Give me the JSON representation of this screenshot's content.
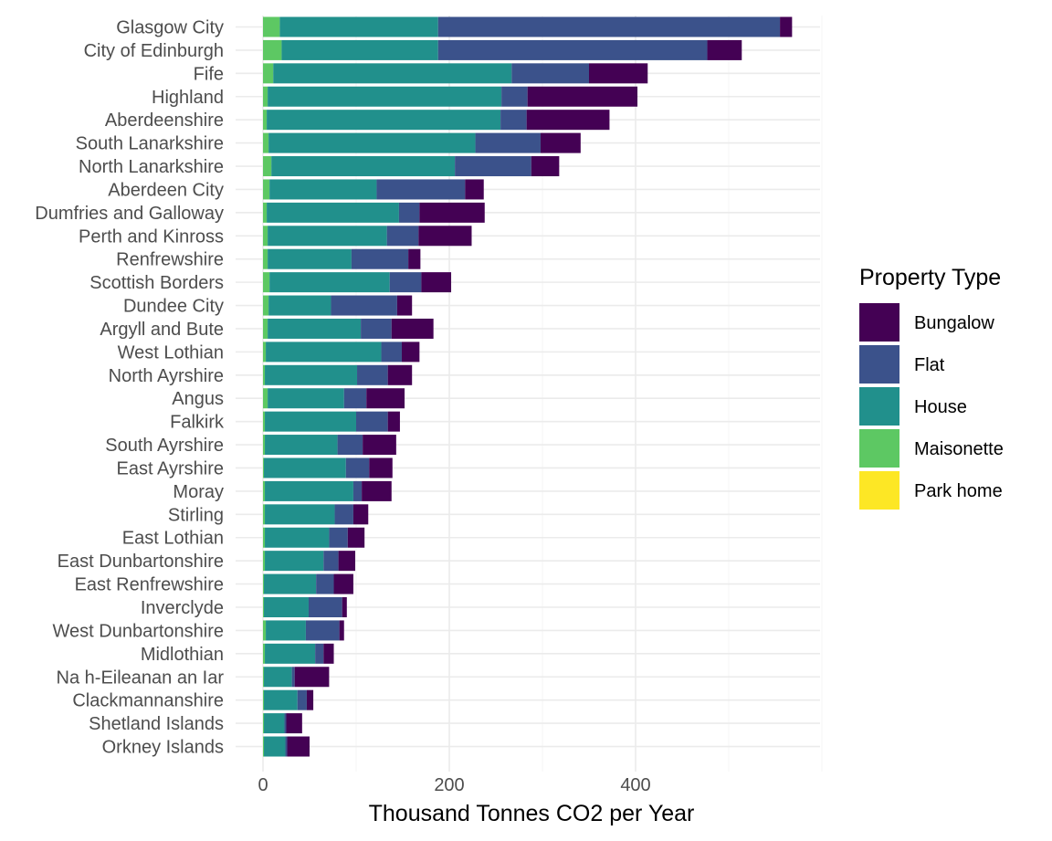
{
  "chart_data": {
    "type": "bar",
    "orientation": "horizontal",
    "stacked": true,
    "title": "",
    "xlabel": "Thousand Tonnes CO2 per Year",
    "ylabel": "",
    "xlim": [
      0,
      600
    ],
    "xticks": [
      0,
      200,
      400
    ],
    "tick_labels": [
      "0",
      "200",
      "400"
    ],
    "grid": true,
    "legend_position": "right",
    "legend_title": "Property Type",
    "stack_order": [
      "Maisonette",
      "House",
      "Flat",
      "Bungalow",
      "Park home"
    ],
    "categories": [
      "Glasgow City",
      "City of Edinburgh",
      "Fife",
      "Highland",
      "Aberdeenshire",
      "South Lanarkshire",
      "North Lanarkshire",
      "Aberdeen City",
      "Dumfries and Galloway",
      "Perth and Kinross",
      "Renfrewshire",
      "Scottish Borders",
      "Dundee City",
      "Argyll and Bute",
      "West Lothian",
      "North Ayrshire",
      "Angus",
      "Falkirk",
      "South Ayrshire",
      "East Ayrshire",
      "Moray",
      "Stirling",
      "East Lothian",
      "East Dunbartonshire",
      "East Renfrewshire",
      "Inverclyde",
      "West Dunbartonshire",
      "Midlothian",
      "Na h-Eileanan an Iar",
      "Clackmannanshire",
      "Shetland Islands",
      "Orkney Islands"
    ],
    "series": [
      {
        "name": "Bungalow",
        "color": "#440154",
        "values": [
          13,
          37,
          63,
          118,
          89,
          43,
          30,
          20,
          70,
          57,
          13,
          32,
          16,
          45,
          19,
          26,
          41,
          13,
          36,
          25,
          32,
          16,
          18,
          18,
          21,
          5,
          5,
          11,
          37,
          7,
          17,
          24
        ]
      },
      {
        "name": "Flat",
        "color": "#3B528B",
        "values": [
          367,
          289,
          83,
          28,
          28,
          70,
          82,
          95,
          22,
          34,
          61,
          34,
          71,
          33,
          22,
          33,
          24,
          34,
          27,
          25,
          9,
          20,
          20,
          16,
          19,
          36,
          36,
          9,
          3,
          10,
          2,
          2
        ]
      },
      {
        "name": "House",
        "color": "#21908C",
        "values": [
          170,
          168,
          256,
          251,
          251,
          222,
          197,
          115,
          142,
          128,
          90,
          129,
          67,
          100,
          124,
          99,
          82,
          98,
          78,
          88,
          95,
          75,
          69,
          63,
          56,
          48,
          43,
          54,
          30,
          36,
          22,
          23
        ]
      },
      {
        "name": "Maisonette",
        "color": "#5DC863",
        "values": [
          18,
          20,
          11,
          5,
          4,
          6,
          9,
          7,
          4,
          5,
          5,
          7,
          6,
          5,
          3,
          2,
          5,
          2,
          2,
          1,
          2,
          2,
          2,
          2,
          1,
          1,
          3,
          2,
          1,
          1,
          1,
          1
        ]
      },
      {
        "name": "Park home",
        "color": "#FDE725",
        "values": [
          0,
          0,
          0,
          0,
          0,
          0,
          0,
          0,
          0,
          0,
          0,
          0,
          0,
          0,
          0,
          0,
          0,
          0,
          0,
          0,
          0,
          0,
          0,
          0,
          0,
          0,
          0,
          0,
          0,
          0,
          0,
          0
        ]
      }
    ],
    "legend_order": [
      "Bungalow",
      "Flat",
      "House",
      "Maisonette",
      "Park home"
    ]
  }
}
